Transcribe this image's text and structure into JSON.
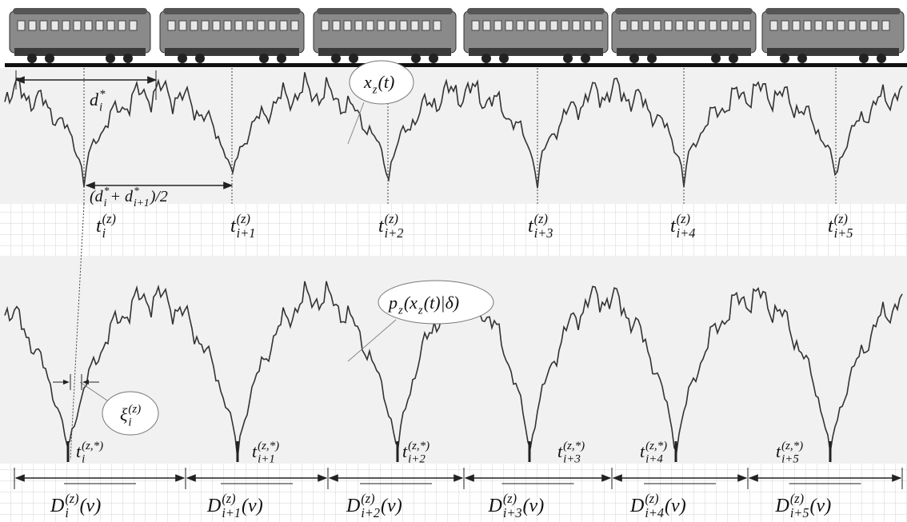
{
  "distance": [
    {
      "text": "d"
    },
    {
      "sub": "i",
      "sup": "*"
    }
  ],
  "signal": [
    {
      "text": "x"
    },
    {
      "sub": "z"
    },
    {
      "text": "(t)"
    }
  ],
  "half_distance": [
    {
      "text": "(d"
    },
    {
      "sub": "i",
      "sup": "*"
    },
    {
      "text": " + d"
    },
    {
      "sub": "i+1",
      "sup": "*"
    },
    {
      "text": ")/2"
    }
  ],
  "peak_times": [
    [
      {
        "text": "t"
      },
      {
        "sub": "i",
        "sup": "(z)"
      }
    ],
    [
      {
        "text": "t"
      },
      {
        "sub": "i+1",
        "sup": "(z)"
      }
    ],
    [
      {
        "text": "t"
      },
      {
        "sub": "i+2",
        "sup": "(z)"
      }
    ],
    [
      {
        "text": "t"
      },
      {
        "sub": "i+3",
        "sup": "(z)"
      }
    ],
    [
      {
        "text": "t"
      },
      {
        "sub": "i+4",
        "sup": "(z)"
      }
    ],
    [
      {
        "text": "t"
      },
      {
        "sub": "i+5",
        "sup": "(z)"
      }
    ]
  ],
  "density": [
    {
      "text": "p"
    },
    {
      "sub": "z"
    },
    {
      "text": "(x"
    },
    {
      "sub": "z"
    },
    {
      "text": "(t)|δ)"
    }
  ],
  "offset": [
    {
      "text": "ξ"
    },
    {
      "sub": "i",
      "sup": "(z)"
    }
  ],
  "min_times": [
    [
      {
        "text": "t"
      },
      {
        "sub": "i",
        "sup": "(z,*)"
      }
    ],
    [
      {
        "text": "t"
      },
      {
        "sub": "i+1",
        "sup": "(z,*)"
      }
    ],
    [
      {
        "text": "t"
      },
      {
        "sub": "i+2",
        "sup": "(z,*)"
      }
    ],
    [
      {
        "text": "t"
      },
      {
        "sub": "i+3",
        "sup": "(z,*)"
      }
    ],
    [
      {
        "text": "t"
      },
      {
        "sub": "i+4",
        "sup": "(z,*)"
      }
    ],
    [
      {
        "text": "t"
      },
      {
        "sub": "i+5",
        "sup": "(z,*)"
      }
    ]
  ],
  "windows": [
    [
      {
        "text": "D"
      },
      {
        "sub": "i",
        "sup": "(z)"
      },
      {
        "text": "(v)"
      }
    ],
    [
      {
        "text": "D"
      },
      {
        "sub": "i+1",
        "sup": "(z)"
      },
      {
        "text": "(v)"
      }
    ],
    [
      {
        "text": "D"
      },
      {
        "sub": "i+2",
        "sup": "(z)"
      },
      {
        "text": "(v)"
      }
    ],
    [
      {
        "text": "D"
      },
      {
        "sub": "i+3",
        "sup": "(z)"
      },
      {
        "text": "(v)"
      }
    ],
    [
      {
        "text": "D"
      },
      {
        "sub": "i+4",
        "sup": "(z)"
      },
      {
        "text": "(v)"
      }
    ],
    [
      {
        "text": "D"
      },
      {
        "sub": "i+5",
        "sup": "(z)"
      },
      {
        "text": "(v)"
      }
    ]
  ]
}
